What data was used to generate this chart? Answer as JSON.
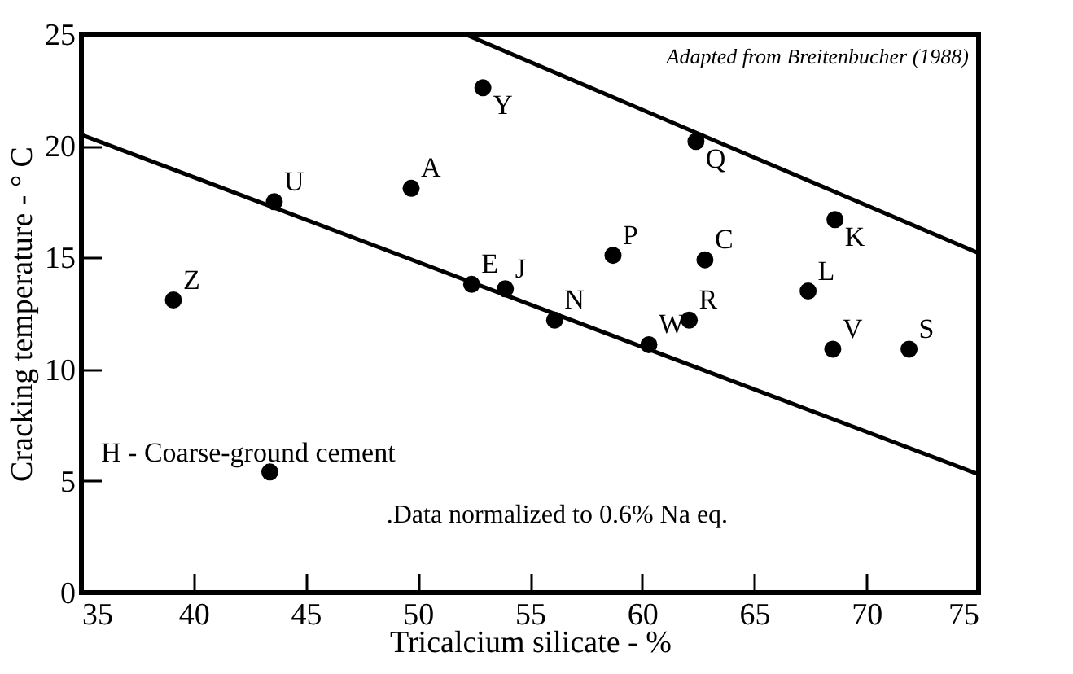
{
  "chart_data": {
    "type": "scatter",
    "xlabel": "Tricalcium silicate - %",
    "ylabel": "Cracking temperature - ° C",
    "xlim": [
      35,
      75
    ],
    "xticks": [
      35,
      40,
      45,
      50,
      55,
      60,
      65,
      70,
      75
    ],
    "ylim": [
      0,
      25
    ],
    "yticks": [
      0,
      5,
      10,
      15,
      20,
      25
    ],
    "marker": "circle",
    "line_style": "solid",
    "series": [
      {
        "color": "#000000",
        "x": [
          52.9,
          62.4,
          68.6,
          49.7,
          43.6,
          52.4,
          53.9,
          56.1,
          58.7,
          62.8,
          60.3,
          62.1,
          67.4,
          68.5,
          71.9,
          39.1,
          43.4
        ],
        "values": [
          22.6,
          20.2,
          16.7,
          18.1,
          17.5,
          13.8,
          13.6,
          12.2,
          15.1,
          14.9,
          11.1,
          12.2,
          13.5,
          10.9,
          10.9,
          13.1,
          5.4
        ]
      },
      {
        "type": "line",
        "marker": "none",
        "color": "#000000",
        "x": [
          52.1,
          75
        ],
        "values": [
          25,
          15.2
        ]
      },
      {
        "type": "line",
        "marker": "none",
        "color": "#000000",
        "x": [
          35,
          75
        ],
        "values": [
          20.5,
          5.3
        ]
      }
    ],
    "annotations": [
      {
        "text": "Y",
        "x": 52.9,
        "y": 22.6
      },
      {
        "text": "Q",
        "x": 62.4,
        "y": 20.2
      },
      {
        "text": "K",
        "x": 68.6,
        "y": 16.7
      },
      {
        "text": "A",
        "x": 49.7,
        "y": 18.1
      },
      {
        "text": "U",
        "x": 43.6,
        "y": 17.5
      },
      {
        "text": "E",
        "x": 52.4,
        "y": 13.8
      },
      {
        "text": "J",
        "x": 53.9,
        "y": 13.6
      },
      {
        "text": "N",
        "x": 56.1,
        "y": 12.2
      },
      {
        "text": "P",
        "x": 58.7,
        "y": 15.1
      },
      {
        "text": "C",
        "x": 62.8,
        "y": 14.9
      },
      {
        "text": "W",
        "x": 60.3,
        "y": 11.1
      },
      {
        "text": "R",
        "x": 62.1,
        "y": 12.2
      },
      {
        "text": "L",
        "x": 67.4,
        "y": 13.5
      },
      {
        "text": "V",
        "x": 68.5,
        "y": 10.9
      },
      {
        "text": "S",
        "x": 71.9,
        "y": 10.9
      },
      {
        "text": "Z",
        "x": 39.1,
        "y": 13.1
      },
      "H - Coarse-ground cement",
      ".Data normalized to 0.6% Na eq.",
      "Adapted from Breitenbucher (1988)"
    ]
  }
}
